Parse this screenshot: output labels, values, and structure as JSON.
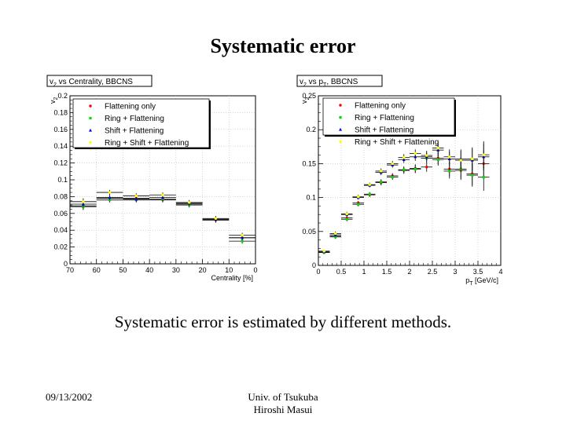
{
  "slide": {
    "title": "Systematic error",
    "subtitle": "Systematic error is estimated by different methods.",
    "footer_date": "09/13/2002",
    "footer_affiliation_line1": "Univ. of Tsukuba",
    "footer_affiliation_line2": "Hiroshi Masui"
  },
  "chart_data": [
    {
      "type": "scatter",
      "title": "v",
      "title_sub": "2",
      "title_rest": " vs Centrality, BBCNS",
      "xlabel": "Centrality [%]",
      "ylabel": "v",
      "ylabel_sub": "2",
      "x_reversed": true,
      "xlim": [
        0,
        70
      ],
      "ylim": [
        0,
        0.2
      ],
      "xticks": [
        70,
        60,
        50,
        40,
        30,
        20,
        10,
        0
      ],
      "yticks": [
        0,
        0.02,
        0.04,
        0.06,
        0.08,
        0.1,
        0.12,
        0.14,
        0.16,
        0.18,
        0.2
      ],
      "ytick_labels": [
        "0",
        "0.02",
        "0.04",
        "0.06",
        "0.08",
        "0.1",
        "0.12",
        "0.14",
        "0.16",
        "0.18",
        "0.2"
      ],
      "legend_position": "top-left",
      "x_half_width": 5,
      "series": [
        {
          "name": "Flattening only",
          "color": "#ff0000",
          "x": [
            65,
            55,
            45,
            35,
            25,
            15,
            5
          ],
          "y": [
            0.069,
            0.078,
            0.078,
            0.076,
            0.071,
            0.052,
            0.031
          ],
          "err": [
            0.004,
            0.003,
            0.003,
            0.003,
            0.003,
            0.003,
            0.003
          ]
        },
        {
          "name": "Ring + Flattening",
          "color": "#00dd00",
          "x": [
            65,
            55,
            45,
            35,
            25,
            15,
            5
          ],
          "y": [
            0.068,
            0.076,
            0.076,
            0.077,
            0.07,
            0.053,
            0.027
          ],
          "err": [
            0.004,
            0.003,
            0.003,
            0.003,
            0.003,
            0.003,
            0.003
          ]
        },
        {
          "name": "Shift + Flattening",
          "color": "#0000ff",
          "x": [
            65,
            55,
            45,
            35,
            25,
            15,
            5
          ],
          "y": [
            0.071,
            0.079,
            0.077,
            0.079,
            0.072,
            0.053,
            0.031
          ],
          "err": [
            0.004,
            0.003,
            0.003,
            0.003,
            0.003,
            0.003,
            0.003
          ]
        },
        {
          "name": "Ring + Shift + Flattening",
          "color": "#ffff00",
          "x": [
            65,
            55,
            45,
            35,
            25,
            15,
            5
          ],
          "y": [
            0.074,
            0.085,
            0.081,
            0.082,
            0.073,
            0.054,
            0.034
          ],
          "err": [
            0.004,
            0.003,
            0.003,
            0.003,
            0.003,
            0.003,
            0.003
          ]
        }
      ]
    },
    {
      "type": "scatter",
      "title": "v",
      "title_sub": "2",
      "title_rest": " vs p",
      "title_sub2": "T",
      "title_rest2": ", BBCNS",
      "xlabel": "p",
      "xlabel_sub": "T",
      "xlabel_rest": " [GeV/c]",
      "ylabel": "v",
      "ylabel_sub": "2",
      "x_reversed": false,
      "xlim": [
        0,
        4
      ],
      "ylim": [
        0,
        0.25
      ],
      "xticks": [
        0,
        0.5,
        1,
        1.5,
        2,
        2.5,
        3,
        3.5,
        4
      ],
      "yticks": [
        0,
        0.05,
        0.1,
        0.15,
        0.2,
        0.25
      ],
      "ytick_labels": [
        "0",
        "0.05",
        "0.1",
        "0.15",
        "0.2",
        "0.25"
      ],
      "legend_position": "top",
      "x_half_width": 0.125,
      "series": [
        {
          "name": "Flattening only",
          "color": "#ff0000",
          "x": [
            0.125,
            0.375,
            0.625,
            0.875,
            1.125,
            1.375,
            1.625,
            1.875,
            2.125,
            2.375,
            2.625,
            2.875,
            3.125,
            3.375,
            3.625
          ],
          "y": [
            0.019,
            0.043,
            0.07,
            0.092,
            0.104,
            0.122,
            0.132,
            0.14,
            0.143,
            0.145,
            0.158,
            0.142,
            0.14,
            0.135,
            0.15
          ],
          "err": [
            0.002,
            0.003,
            0.003,
            0.003,
            0.003,
            0.004,
            0.004,
            0.005,
            0.006,
            0.007,
            0.009,
            0.011,
            0.014,
            0.017,
            0.02
          ]
        },
        {
          "name": "Ring + Flattening",
          "color": "#00dd00",
          "x": [
            0.125,
            0.375,
            0.625,
            0.875,
            1.125,
            1.375,
            1.625,
            1.875,
            2.125,
            2.375,
            2.625,
            2.875,
            3.125,
            3.375,
            3.625
          ],
          "y": [
            0.019,
            0.042,
            0.068,
            0.09,
            0.105,
            0.123,
            0.13,
            0.141,
            0.142,
            0.158,
            0.156,
            0.139,
            0.142,
            0.133,
            0.13
          ],
          "err": [
            0.002,
            0.003,
            0.003,
            0.003,
            0.003,
            0.004,
            0.004,
            0.005,
            0.006,
            0.007,
            0.009,
            0.011,
            0.014,
            0.017,
            0.02
          ]
        },
        {
          "name": "Shift + Flattening",
          "color": "#0000ff",
          "x": [
            0.125,
            0.375,
            0.625,
            0.875,
            1.125,
            1.375,
            1.625,
            1.875,
            2.125,
            2.375,
            2.625,
            2.875,
            3.125,
            3.375,
            3.625
          ],
          "y": [
            0.02,
            0.045,
            0.075,
            0.1,
            0.118,
            0.137,
            0.148,
            0.156,
            0.16,
            0.16,
            0.17,
            0.157,
            0.157,
            0.155,
            0.16
          ],
          "err": [
            0.002,
            0.003,
            0.003,
            0.003,
            0.003,
            0.004,
            0.004,
            0.005,
            0.006,
            0.007,
            0.009,
            0.011,
            0.014,
            0.017,
            0.02
          ]
        },
        {
          "name": "Ring + Shift + Flattening",
          "color": "#ffff00",
          "x": [
            0.125,
            0.375,
            0.625,
            0.875,
            1.125,
            1.375,
            1.625,
            1.875,
            2.125,
            2.375,
            2.625,
            2.875,
            3.125,
            3.375,
            3.625
          ],
          "y": [
            0.021,
            0.047,
            0.076,
            0.101,
            0.119,
            0.139,
            0.15,
            0.159,
            0.165,
            0.162,
            0.173,
            0.16,
            0.155,
            0.157,
            0.163
          ],
          "err": [
            0.002,
            0.003,
            0.003,
            0.003,
            0.003,
            0.004,
            0.004,
            0.005,
            0.006,
            0.007,
            0.009,
            0.011,
            0.014,
            0.017,
            0.02
          ]
        }
      ]
    }
  ]
}
